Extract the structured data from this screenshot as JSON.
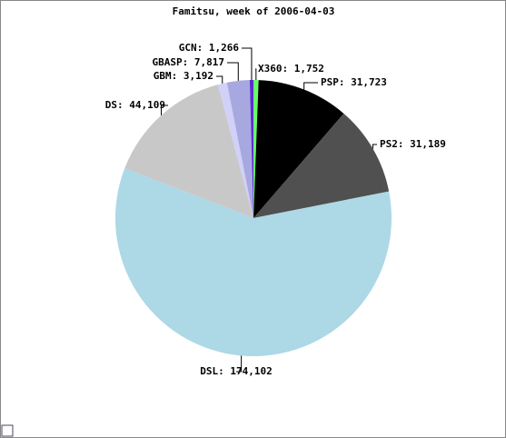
{
  "chart_data": {
    "type": "pie",
    "title": "Famitsu, week of 2006-04-03",
    "values": [
      1752,
      31723,
      31189,
      174102,
      44109,
      3192,
      7817,
      1266
    ],
    "value_labels": [
      "X360: 1,752",
      "PSP: 31,723",
      "PS2: 31,189",
      "DSL: 174,102",
      "DS: 44,109",
      "GBM: 3,192",
      "GBASP: 7,817",
      "GCN: 1,266"
    ],
    "colors": [
      "#66ff66",
      "#000000",
      "#505050",
      "#add8e6",
      "#c8c8c8",
      "#d0d0f8",
      "#a8a8e0",
      "#5a2fd0"
    ]
  }
}
